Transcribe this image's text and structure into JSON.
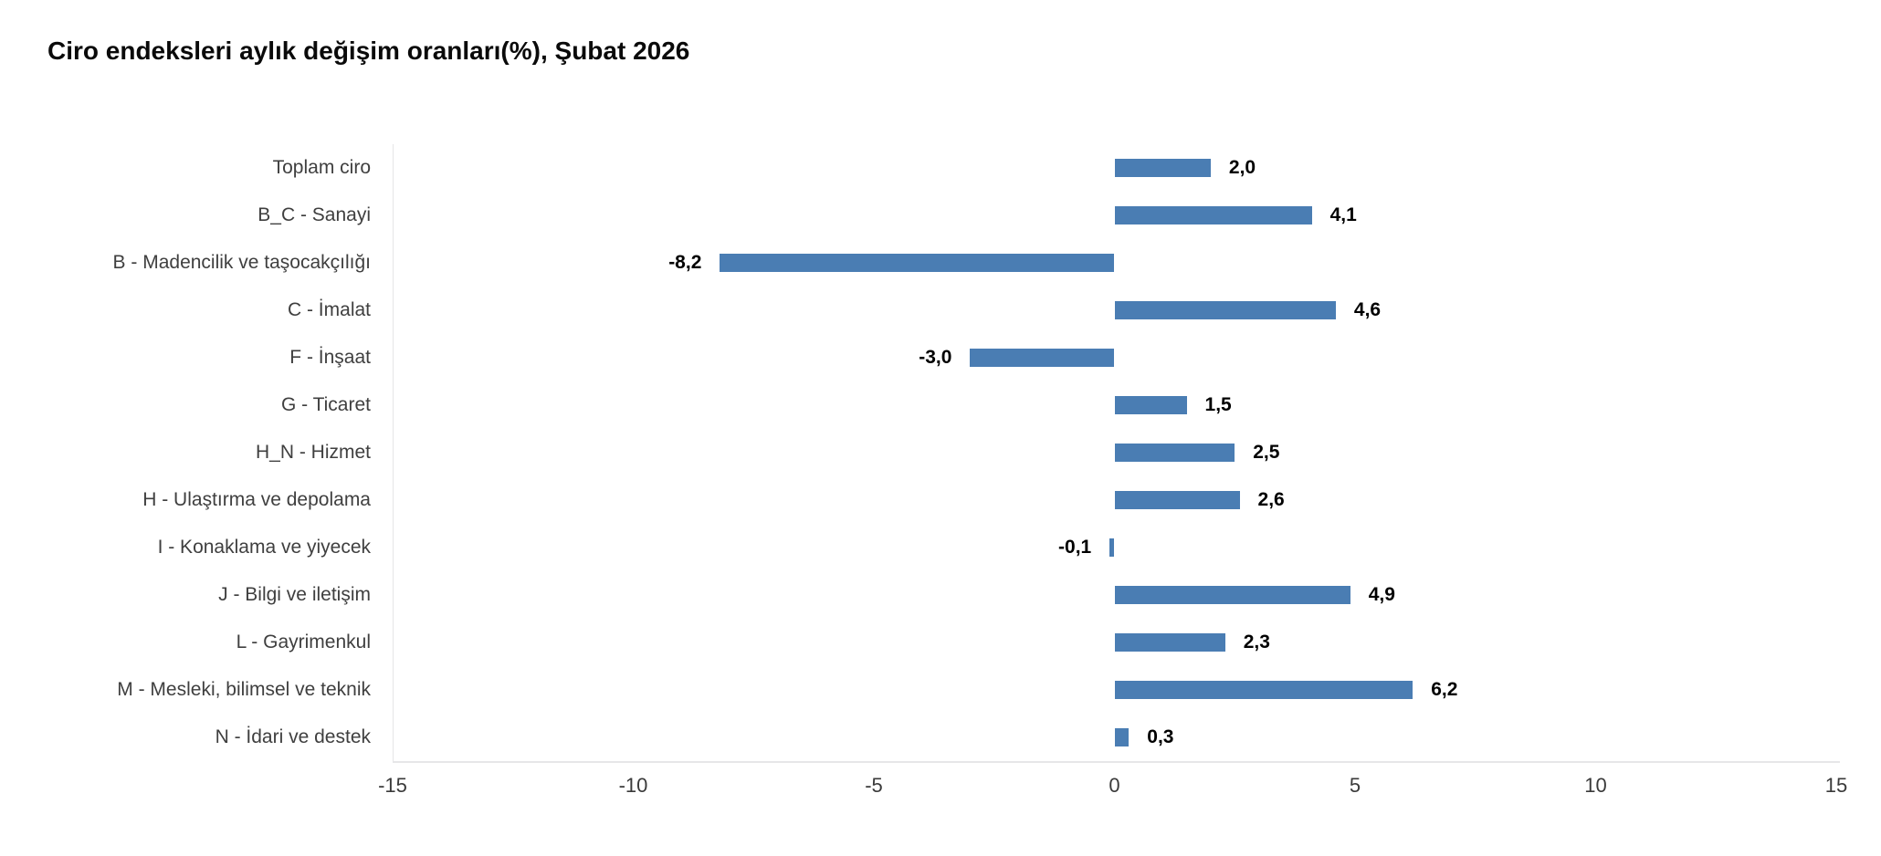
{
  "title": "Ciro endeksleri aylık değişim oranları(%), Şubat 2026",
  "colors": {
    "bar": "#4A7DB3",
    "axis_line": "#E5E5E7",
    "category_label": "#3F3F3F",
    "tick_label": "#3A3A3A",
    "value_label": "#000000",
    "title": "#0A0A0A",
    "background": "#FFFFFF"
  },
  "chart_data": {
    "type": "bar",
    "orientation": "horizontal",
    "title": "Ciro endeksleri aylık değişim oranları(%), Şubat 2026",
    "categories": [
      "Toplam ciro",
      "B_C - Sanayi",
      "B - Madencilik ve taşocakçılığı",
      "C - İmalat",
      "F - İnşaat",
      "G - Ticaret",
      "H_N - Hizmet",
      "H - Ulaştırma ve depolama",
      "I - Konaklama ve yiyecek",
      "J - Bilgi ve iletişim",
      "L - Gayrimenkul",
      "M - Mesleki, bilimsel ve teknik",
      "N - İdari ve destek"
    ],
    "values": [
      2.0,
      4.1,
      -8.2,
      4.6,
      -3.0,
      1.5,
      2.5,
      2.6,
      -0.1,
      4.9,
      2.3,
      6.2,
      0.3
    ],
    "value_labels": [
      "2,0",
      "4,1",
      "-8,2",
      "4,6",
      "-3,0",
      "1,5",
      "2,5",
      "2,6",
      "-0,1",
      "4,9",
      "2,3",
      "6,2",
      "0,3"
    ],
    "xlabel": "",
    "ylabel": "",
    "xlim": [
      -15,
      15
    ],
    "x_ticks": [
      -15,
      -10,
      -5,
      0,
      5,
      10,
      15
    ],
    "x_tick_labels": [
      "-15",
      "-10",
      "-5",
      "0",
      "5",
      "10",
      "15"
    ],
    "grid": false,
    "legend": false
  }
}
